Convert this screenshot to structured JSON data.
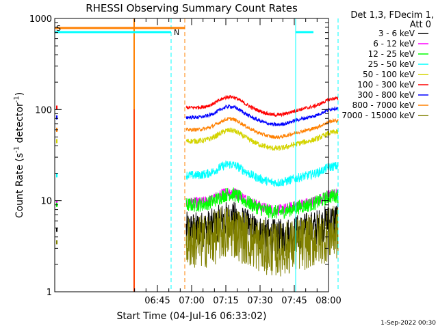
{
  "chart_data": {
    "type": "line",
    "title": "RHESSI Observing Summary Count Rates",
    "xlabel": "Start Time (04-Jul-16 06:33:02)",
    "ylabel_main": "Count Rate (s",
    "ylabel_sup1": "-1",
    "ylabel_mid": " detector",
    "ylabel_sup2": "-1",
    "ylabel_end": ")",
    "yscale": "log",
    "ylim": [
      1,
      1000
    ],
    "xlim_minutes": [
      6.0,
      8.0
    ],
    "x_tick_labels": [
      "06:45",
      "07:00",
      "07:15",
      "07:30",
      "07:45",
      "08:00"
    ],
    "x_ticks_minutes": [
      6.75,
      7.0,
      7.25,
      7.5,
      7.75,
      8.0
    ],
    "y_tick_labels": [
      "1",
      "10",
      "100",
      "1000"
    ],
    "y_ticks": [
      1,
      10,
      100,
      1000
    ],
    "legend_header": [
      "Det 1,3, FDecim 1,",
      "Att 0"
    ],
    "legend_position": "right",
    "series": [
      {
        "name": "3 - 6 keV",
        "color": "#000000",
        "level": 4.8,
        "jitter": 0.2
      },
      {
        "name": "6 - 12 keV",
        "color": "#ff00ff",
        "level": 9.5,
        "jitter": 0.06
      },
      {
        "name": "12 - 25 keV",
        "color": "#00ff00",
        "level": 9.0,
        "jitter": 0.08
      },
      {
        "name": "25 - 50 keV",
        "color": "#00ffff",
        "level": 19.0,
        "jitter": 0.05
      },
      {
        "name": "50 - 100 keV",
        "color": "#d4d400",
        "level": 45.0,
        "jitter": 0.03
      },
      {
        "name": "100 - 300 keV",
        "color": "#ff0000",
        "level": 105.0,
        "jitter": 0.02
      },
      {
        "name": "300 - 800 keV",
        "color": "#0000ff",
        "level": 82.0,
        "jitter": 0.02
      },
      {
        "name": "800 - 7000 keV",
        "color": "#ff8000",
        "level": 60.0,
        "jitter": 0.02
      },
      {
        "name": "7000 - 15000 keV",
        "color": "#808000",
        "level": 3.5,
        "jitter": 0.3
      }
    ],
    "annotations": [
      {
        "text": "S",
        "color": "#ff8000"
      },
      {
        "text": "N",
        "color": "#00ffff"
      }
    ]
  },
  "footer_date": "1-Sep-2022 00:30"
}
